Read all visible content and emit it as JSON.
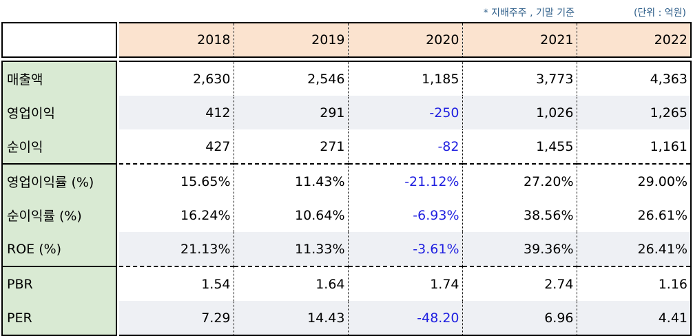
{
  "notes": {
    "basis": "* 지배주주 , 기말 기준",
    "unit": "(단위 : 억원)"
  },
  "table": {
    "years": [
      "2018",
      "2019",
      "2020",
      "2021",
      "2022"
    ],
    "rows": [
      {
        "label": "매출액",
        "values": [
          "2,630",
          "2,546",
          "1,185",
          "3,773",
          "4,363"
        ]
      },
      {
        "label": "영업이익",
        "values": [
          "412",
          "291",
          "-250",
          "1,026",
          "1,265"
        ]
      },
      {
        "label": "순이익",
        "values": [
          "427",
          "271",
          "-82",
          "1,455",
          "1,161"
        ]
      },
      {
        "label": "영업이익률 (%)",
        "values": [
          "15.65%",
          "11.43%",
          "-21.12%",
          "27.20%",
          "29.00%"
        ]
      },
      {
        "label": "순이익률 (%)",
        "values": [
          "16.24%",
          "10.64%",
          "-6.93%",
          "38.56%",
          "26.61%"
        ]
      },
      {
        "label": "ROE (%)",
        "values": [
          "21.13%",
          "11.33%",
          "-3.61%",
          "39.36%",
          "26.41%"
        ]
      },
      {
        "label": "PBR",
        "values": [
          "1.54",
          "1.64",
          "1.74",
          "2.74",
          "1.16"
        ]
      },
      {
        "label": "PER",
        "values": [
          "7.29",
          "14.43",
          "-48.20",
          "6.96",
          "4.41"
        ]
      }
    ]
  },
  "colors": {
    "header_fill": "#fbe3cf",
    "label_fill": "#d9ead3",
    "stripe_fill": "#eef0f4",
    "negative_text": "#1f1fe0",
    "note_text": "#2f5f8a"
  }
}
